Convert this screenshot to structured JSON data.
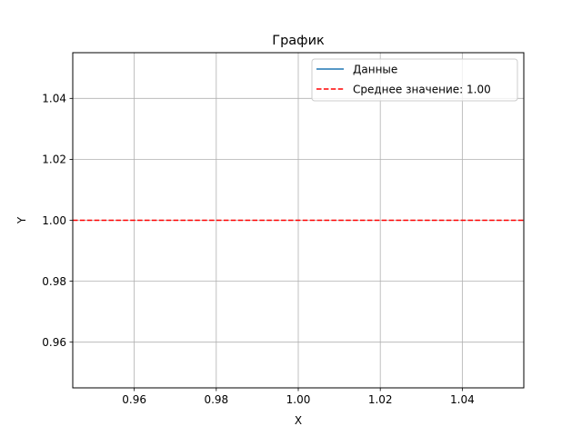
{
  "chart_data": {
    "type": "line",
    "title": "График",
    "xlabel": "X",
    "ylabel": "Y",
    "xlim": [
      0.945,
      1.055
    ],
    "ylim": [
      0.945,
      1.055
    ],
    "x_ticks": [
      0.96,
      0.98,
      1.0,
      1.02,
      1.04
    ],
    "x_tick_labels": [
      "0.96",
      "0.98",
      "1.00",
      "1.02",
      "1.04"
    ],
    "y_ticks": [
      0.96,
      0.98,
      1.0,
      1.02,
      1.04
    ],
    "y_tick_labels": [
      "0.96",
      "0.98",
      "1.00",
      "1.02",
      "1.04"
    ],
    "grid": true,
    "legend_position": "top-right",
    "series": [
      {
        "name": "Данные",
        "color": "#1f77b4",
        "style": "solid",
        "x": [
          1.0
        ],
        "y": [
          1.0
        ]
      },
      {
        "name": "Среднее значение: 1.00",
        "color": "#ff0000",
        "style": "dashed",
        "y_constant": 1.0
      }
    ]
  }
}
